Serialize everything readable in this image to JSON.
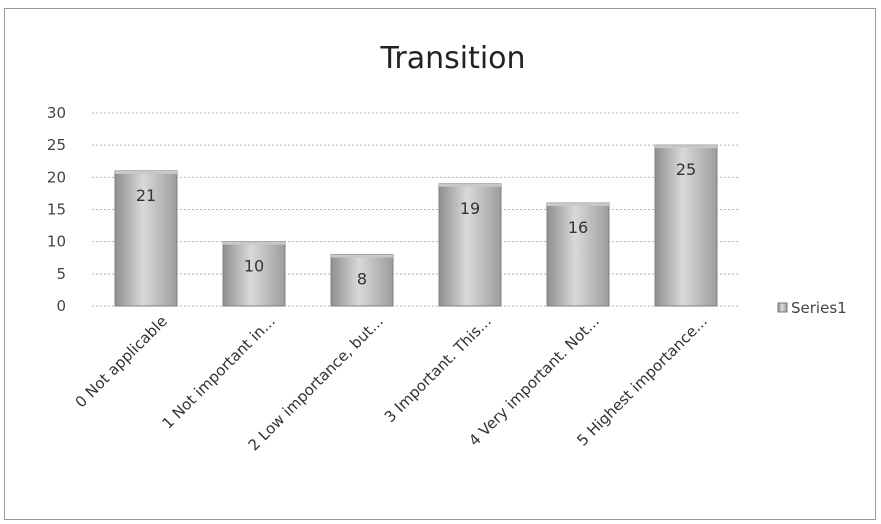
{
  "chart_data": {
    "type": "bar",
    "title": "Transition",
    "categories": [
      "0 Not applicable",
      "1 Not important in...",
      "2 Low importance, but...",
      "3 Important. This...",
      "4 Very important. Not...",
      "5 Highest importance..."
    ],
    "series": [
      {
        "name": "Series1",
        "values": [
          21,
          10,
          8,
          19,
          16,
          25
        ]
      }
    ],
    "ylim": [
      0,
      30
    ],
    "yticks": [
      0,
      5,
      10,
      15,
      20,
      25,
      30
    ],
    "grid": true,
    "legend_position": "right",
    "bar_color": "#a9a9a9",
    "xlabel": "",
    "ylabel": ""
  }
}
